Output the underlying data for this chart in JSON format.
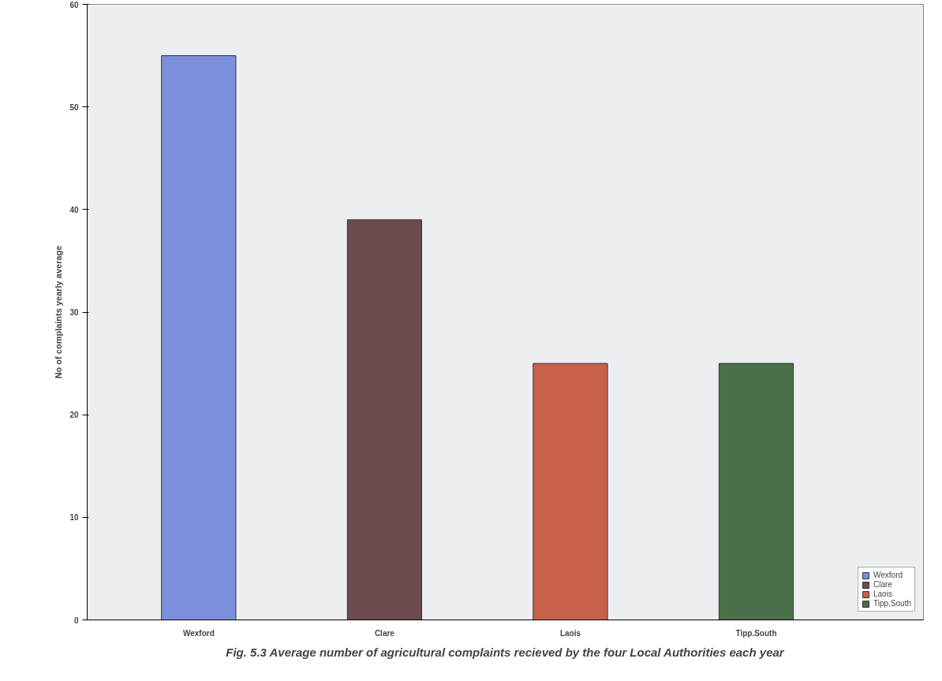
{
  "chart_data": {
    "type": "bar",
    "title": "Fig. 5.3 Average number of agricultural complaints recieved by the four Local Authorities each year",
    "ylabel": "No of complaints yearly average",
    "categories": [
      "Wexford",
      "Clare",
      "Laois",
      "Tipp.South"
    ],
    "stacked": true,
    "series": [
      {
        "name": "Wexford",
        "color": "#7b8fdc",
        "values": [
          55,
          null,
          null,
          null
        ]
      },
      {
        "name": "Clare",
        "color": "#6b4b4e",
        "values": [
          null,
          39,
          null,
          null
        ]
      },
      {
        "name": "Laois",
        "color": "#c8614a",
        "values": [
          null,
          null,
          25,
          null
        ]
      },
      {
        "name": "Tipp.South",
        "color": "#4a7049",
        "values": [
          null,
          null,
          null,
          25
        ]
      }
    ],
    "ylim": [
      0,
      60
    ],
    "yticks": [
      0,
      10,
      20,
      30,
      40,
      50,
      60
    ],
    "grid": false,
    "legend": "bottom right"
  }
}
